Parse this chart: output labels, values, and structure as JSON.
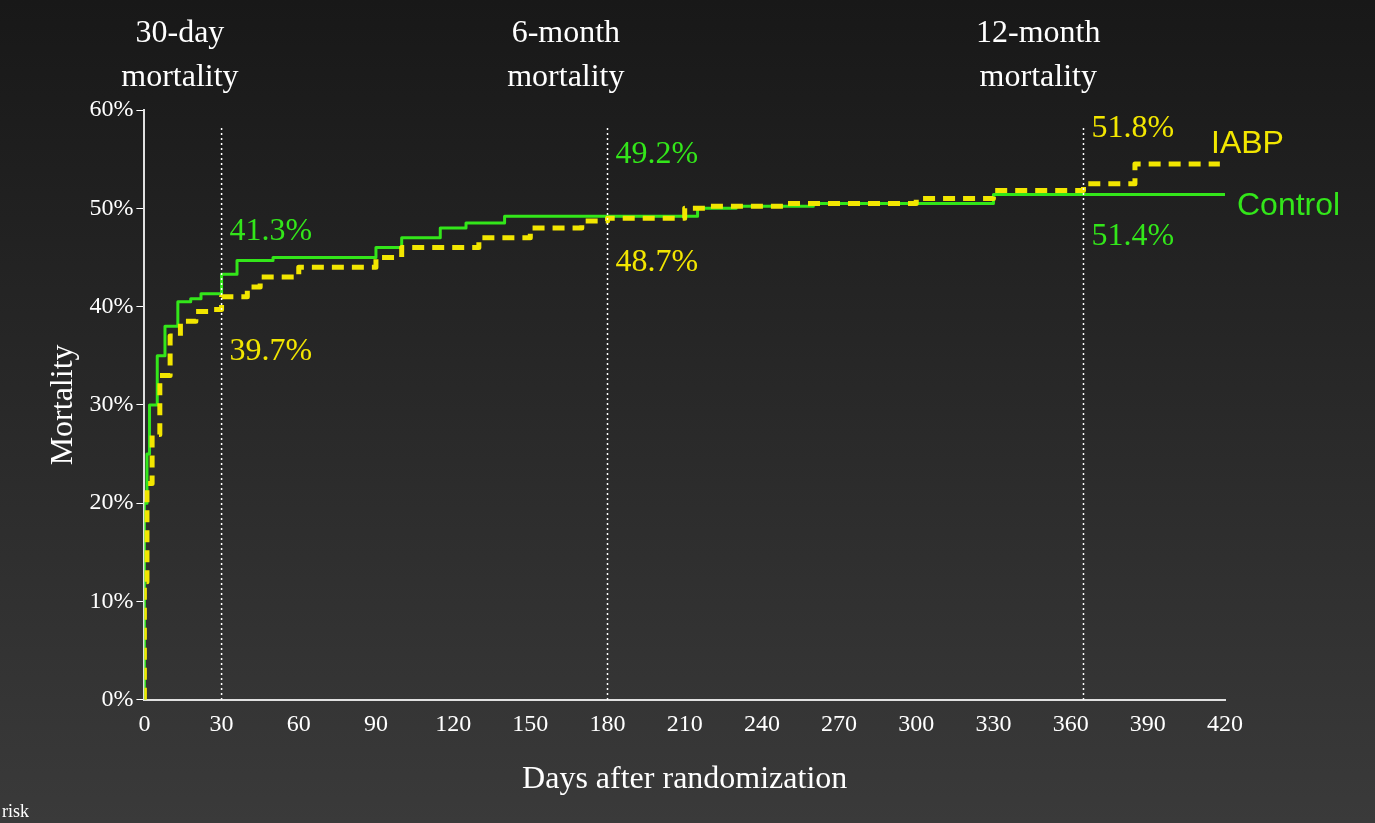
{
  "chart_data": {
    "type": "step",
    "xlabel": "Days after randomization",
    "ylabel": "Mortality",
    "xlim": [
      0,
      420
    ],
    "xticks": [
      0,
      30,
      60,
      90,
      120,
      150,
      180,
      210,
      240,
      270,
      300,
      330,
      360,
      390,
      420
    ],
    "ylim": [
      0,
      60
    ],
    "yticks": [
      {
        "value": 0,
        "label": "0%"
      },
      {
        "value": 10,
        "label": "10%"
      },
      {
        "value": 20,
        "label": "20%"
      },
      {
        "value": 30,
        "label": "30%"
      },
      {
        "value": 40,
        "label": "40%"
      },
      {
        "value": 50,
        "label": "50%"
      },
      {
        "value": 60,
        "label": "60%"
      }
    ],
    "grid": false,
    "legend": false,
    "marker": "none",
    "series": [
      {
        "name": "IABP",
        "color": "#f2e600",
        "line_style": "dashed",
        "x": [
          0,
          1,
          3,
          6,
          10,
          14,
          20,
          25,
          30,
          40,
          45,
          60,
          90,
          100,
          130,
          150,
          170,
          180,
          210,
          218,
          250,
          300,
          330,
          365,
          385,
          415,
          418
        ],
        "values": [
          0,
          12,
          22,
          27,
          33,
          37,
          38.5,
          39.5,
          39.7,
          41,
          42,
          43,
          44,
          45,
          46,
          47,
          48,
          48.7,
          49,
          50,
          50.2,
          50.5,
          51,
          51.8,
          52.5,
          54.5,
          54.5
        ]
      },
      {
        "name": "Control",
        "color": "#33e61a",
        "line_style": "solid",
        "x": [
          0,
          1,
          2,
          5,
          8,
          13,
          18,
          22,
          30,
          36,
          50,
          90,
          100,
          115,
          125,
          140,
          180,
          215,
          230,
          260,
          330,
          365,
          420
        ],
        "values": [
          0,
          20,
          25,
          30,
          35,
          38,
          40.5,
          40.8,
          41.3,
          43.3,
          44.7,
          45,
          46,
          47,
          48,
          48.5,
          49.2,
          49.2,
          50,
          50.2,
          50.5,
          51.4,
          51.4
        ]
      }
    ],
    "ref_lines": [
      {
        "axis": "x",
        "value": 30,
        "label": "30-day mortality",
        "color": "#ffffff",
        "line_style": "dotted"
      },
      {
        "axis": "x",
        "value": 180,
        "label": "6-month mortality",
        "color": "#ffffff",
        "line_style": "dotted"
      },
      {
        "axis": "x",
        "value": 365,
        "label": "12-month mortality",
        "color": "#ffffff",
        "line_style": "dotted"
      }
    ],
    "annotations": [
      {
        "text": "41.3%",
        "x": 30,
        "y": 41.3
      },
      {
        "text": "39.7%",
        "x": 30,
        "y": 39.7
      },
      {
        "text": "48.7%",
        "x": 180,
        "y": 48.7
      },
      {
        "text": "49.2%",
        "x": 180,
        "y": 49.2
      },
      {
        "text": "51.8%",
        "x": 365,
        "y": 51.8
      },
      {
        "text": "51.4%",
        "x": 365,
        "y": 51.4
      },
      "risk"
    ]
  }
}
